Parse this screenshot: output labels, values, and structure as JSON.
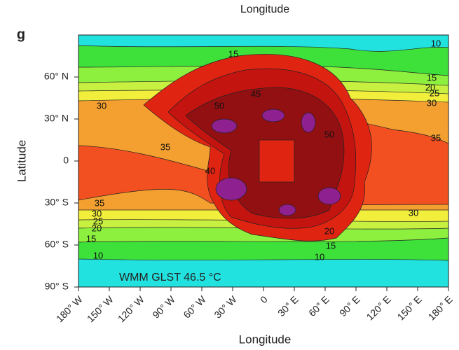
{
  "chart_data": {
    "type": "contour",
    "panel": "g",
    "title": "Longitude",
    "xlabel": "Longitude",
    "ylabel": "Latitude",
    "annotation": "WMM GLST 46.5 °C",
    "xlim": [
      -180,
      180
    ],
    "ylim": [
      -90,
      90
    ],
    "xticks": [
      {
        "value": -180,
        "label": "180° W"
      },
      {
        "value": -150,
        "label": "150° W"
      },
      {
        "value": -120,
        "label": "120° W"
      },
      {
        "value": -90,
        "label": "90° W"
      },
      {
        "value": -60,
        "label": "60° W"
      },
      {
        "value": -30,
        "label": "30° W"
      },
      0,
      {
        "value": 30,
        "label": "30° E"
      },
      {
        "value": 60,
        "label": "60° E"
      },
      {
        "value": 90,
        "label": "90° E"
      },
      {
        "value": 120,
        "label": "120° E"
      },
      {
        "value": 150,
        "label": "150° E"
      },
      {
        "value": 180,
        "label": "180° E"
      }
    ],
    "yticks": [
      {
        "value": -90,
        "label": "90° S"
      },
      {
        "value": -60,
        "label": "60° S"
      },
      {
        "value": -30,
        "label": "30° S"
      },
      0,
      {
        "value": 30,
        "label": "30° N"
      },
      {
        "value": 60,
        "label": "60° N"
      }
    ],
    "levels": [
      10,
      15,
      20,
      25,
      30,
      35,
      40,
      45,
      50,
      55
    ],
    "colors": [
      "#3ee03a",
      "#8ef03e",
      "#c8f040",
      "#f2ee3c",
      "#f4a030",
      "#f25020",
      "#e02412",
      "#c41410",
      "#921012",
      "#8e2090"
    ]
  }
}
